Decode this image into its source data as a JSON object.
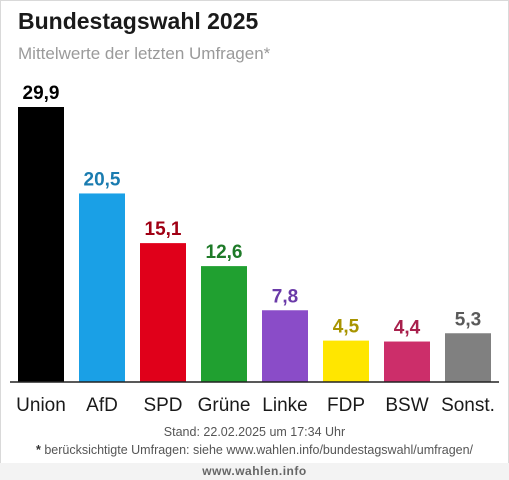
{
  "header": {
    "title": "Bundestagswahl 2025",
    "subtitle": "Mittelwerte der letzten Umfragen*"
  },
  "footer": {
    "stand": "Stand: 22.02.2025 um 17:34 Uhr",
    "note_star": "*",
    "note_text": "berücksichtigte Umfragen: siehe www.wahlen.info/bundestagswahl/umfragen/",
    "brand": "www.wahlen.info"
  },
  "chart_data": {
    "type": "bar",
    "title": "Bundestagswahl 2025",
    "subtitle": "Mittelwerte der letzten Umfragen*",
    "categories": [
      "Union",
      "AfD",
      "SPD",
      "Grüne",
      "Linke",
      "FDP",
      "BSW",
      "Sonst."
    ],
    "values": [
      29.9,
      20.5,
      15.1,
      12.6,
      7.8,
      4.5,
      4.4,
      5.3
    ],
    "value_labels": [
      "29,9",
      "20,5",
      "15,1",
      "12,6",
      "7,8",
      "4,5",
      "4,4",
      "5,3"
    ],
    "bar_colors": [
      "#000000",
      "#1aa0e6",
      "#e0001a",
      "#20a030",
      "#8a4cc8",
      "#ffe600",
      "#cc2e6a",
      "#808080"
    ],
    "label_colors": [
      "#000000",
      "#1a7cb0",
      "#a00014",
      "#1e7a28",
      "#6a3aa8",
      "#a89400",
      "#a8204c",
      "#5a5a5a"
    ],
    "xlabel": "",
    "ylabel": "",
    "ylim": [
      0,
      29.9
    ],
    "grid": false,
    "legend": "none"
  }
}
